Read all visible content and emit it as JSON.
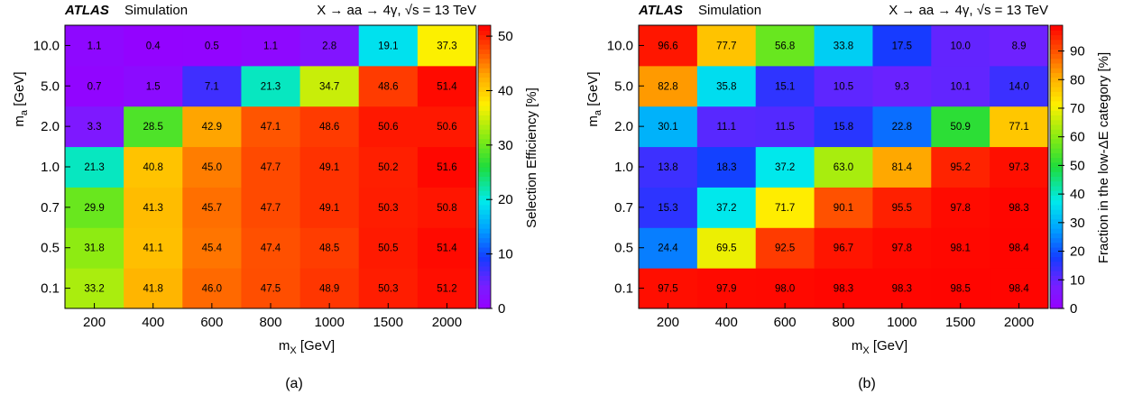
{
  "chart_data": [
    {
      "type": "heatmap",
      "panel_label": "(a)",
      "experiment": "ATLAS",
      "experiment_suffix": "Simulation",
      "process": "X → aa → 4γ,  √s = 13 TeV",
      "xlabel": "m",
      "xlabel_sub": "X",
      "xlabel_unit": " [GeV]",
      "ylabel": "m",
      "ylabel_sub": "a",
      "ylabel_unit": " [GeV]",
      "x_categories": [
        "200",
        "400",
        "600",
        "800",
        "1000",
        "1500",
        "2000"
      ],
      "y_categories": [
        "0.1",
        "0.5",
        "0.7",
        "1.0",
        "2.0",
        "5.0",
        "10.0"
      ],
      "z_label": "Selection Efficiency [%]",
      "z_range": [
        0,
        52
      ],
      "z_ticks": [
        "0",
        "10",
        "20",
        "30",
        "40",
        "50"
      ],
      "values": [
        [
          "33.2",
          "41.8",
          "46.0",
          "47.5",
          "48.9",
          "50.3",
          "51.2"
        ],
        [
          "31.8",
          "41.1",
          "45.4",
          "47.4",
          "48.5",
          "50.5",
          "51.4"
        ],
        [
          "29.9",
          "41.3",
          "45.7",
          "47.7",
          "49.1",
          "50.3",
          "50.8"
        ],
        [
          "21.3",
          "40.8",
          "45.0",
          "47.7",
          "49.1",
          "50.2",
          "51.6"
        ],
        [
          "3.3",
          "28.5",
          "42.9",
          "47.1",
          "48.6",
          "50.6",
          "50.6"
        ],
        [
          "0.7",
          "1.5",
          "7.1",
          "21.3",
          "34.7",
          "48.6",
          "51.4"
        ],
        [
          "1.1",
          "0.4",
          "0.5",
          "1.1",
          "2.8",
          "19.1",
          "37.3"
        ]
      ]
    },
    {
      "type": "heatmap",
      "panel_label": "(b)",
      "experiment": "ATLAS",
      "experiment_suffix": "Simulation",
      "process": "X → aa → 4γ,  √s = 13 TeV",
      "xlabel": "m",
      "xlabel_sub": "X",
      "xlabel_unit": " [GeV]",
      "ylabel": "m",
      "ylabel_sub": "a",
      "ylabel_unit": " [GeV]",
      "x_categories": [
        "200",
        "400",
        "600",
        "800",
        "1000",
        "1500",
        "2000"
      ],
      "y_categories": [
        "0.1",
        "0.5",
        "0.7",
        "1.0",
        "2.0",
        "5.0",
        "10.0"
      ],
      "z_label": "Fraction in the low-ΔE category [%]",
      "z_range": [
        0,
        99
      ],
      "z_ticks": [
        "0",
        "10",
        "20",
        "30",
        "40",
        "50",
        "60",
        "70",
        "80",
        "90"
      ],
      "values": [
        [
          "97.5",
          "97.9",
          "98.0",
          "98.3",
          "98.3",
          "98.5",
          "98.4"
        ],
        [
          "24.4",
          "69.5",
          "92.5",
          "96.7",
          "97.8",
          "98.1",
          "98.4"
        ],
        [
          "15.3",
          "37.2",
          "71.7",
          "90.1",
          "95.5",
          "97.8",
          "98.3"
        ],
        [
          "13.8",
          "18.3",
          "37.2",
          "63.0",
          "81.4",
          "95.2",
          "97.3"
        ],
        [
          "30.1",
          "11.1",
          "11.5",
          "15.8",
          "22.8",
          "50.9",
          "77.1"
        ],
        [
          "82.8",
          "35.8",
          "15.1",
          "10.5",
          "9.3",
          "10.1",
          "14.0"
        ],
        [
          "96.6",
          "77.7",
          "56.8",
          "33.8",
          "17.5",
          "10.0",
          "8.9"
        ]
      ]
    }
  ]
}
